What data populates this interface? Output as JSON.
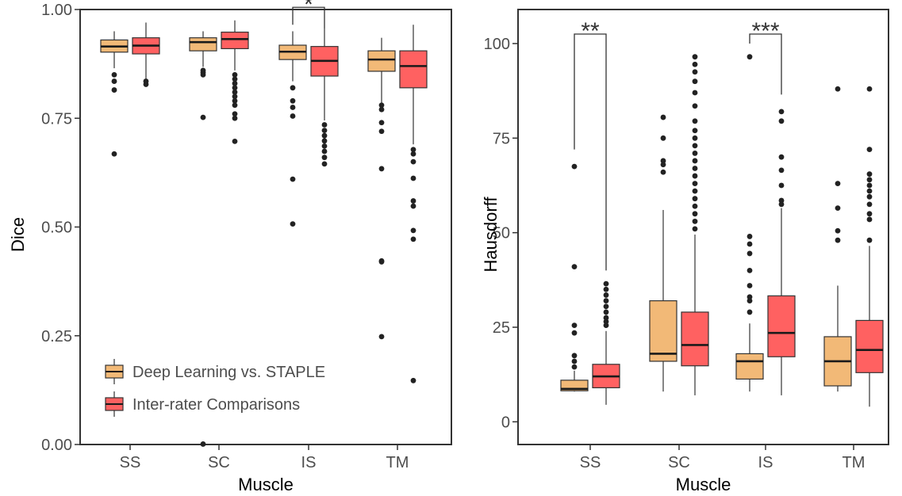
{
  "colors": {
    "dl": "#F2B977",
    "ir": "#FF6161",
    "outline": "#333333"
  },
  "legend": [
    {
      "label": "Deep Learning vs. STAPLE",
      "color": "#F2B977"
    },
    {
      "label": "Inter-rater Comparisons",
      "color": "#FF6161"
    }
  ],
  "chart_data": [
    {
      "type": "box",
      "xlabel": "Muscle",
      "ylabel": "Dice",
      "categories": [
        "SS",
        "SC",
        "IS",
        "TM"
      ],
      "ylim": [
        0,
        1
      ],
      "yticks": [
        0.0,
        0.25,
        0.5,
        0.75,
        1.0
      ],
      "ytick_labels": [
        "0.00",
        "0.25",
        "0.50",
        "0.75",
        "1.00"
      ],
      "series": [
        {
          "name": "Deep Learning vs. STAPLE",
          "boxes": [
            {
              "q1": 0.902,
              "median": 0.915,
              "q3": 0.93,
              "low": 0.865,
              "high": 0.95,
              "outliers": [
                0.85,
                0.835,
                0.815,
                0.668
              ]
            },
            {
              "q1": 0.905,
              "median": 0.925,
              "q3": 0.935,
              "low": 0.868,
              "high": 0.95,
              "outliers": [
                0.86,
                0.855,
                0.85,
                0.752,
                0.001
              ]
            },
            {
              "q1": 0.885,
              "median": 0.903,
              "q3": 0.918,
              "low": 0.835,
              "high": 0.95,
              "outliers": [
                0.82,
                0.79,
                0.775,
                0.755,
                0.61,
                0.507
              ]
            },
            {
              "q1": 0.858,
              "median": 0.885,
              "q3": 0.905,
              "low": 0.785,
              "high": 0.935,
              "outliers": [
                0.78,
                0.77,
                0.74,
                0.72,
                0.634,
                0.422,
                0.42,
                0.248
              ]
            }
          ]
        },
        {
          "name": "Inter-rater Comparisons",
          "boxes": [
            {
              "q1": 0.898,
              "median": 0.917,
              "q3": 0.935,
              "low": 0.84,
              "high": 0.97,
              "outliers": [
                0.835,
                0.828
              ]
            },
            {
              "q1": 0.91,
              "median": 0.932,
              "q3": 0.948,
              "low": 0.86,
              "high": 0.975,
              "outliers": [
                0.85,
                0.84,
                0.83,
                0.82,
                0.81,
                0.8,
                0.79,
                0.78,
                0.76,
                0.75,
                0.697
              ]
            },
            {
              "q1": 0.847,
              "median": 0.882,
              "q3": 0.915,
              "low": 0.745,
              "high": 0.955,
              "outliers": [
                0.735,
                0.722,
                0.71,
                0.698,
                0.686,
                0.674,
                0.66,
                0.645
              ]
            },
            {
              "q1": 0.82,
              "median": 0.87,
              "q3": 0.905,
              "low": 0.69,
              "high": 0.965,
              "outliers": [
                0.678,
                0.668,
                0.65,
                0.612,
                0.56,
                0.548,
                0.492,
                0.472,
                0.147
              ]
            }
          ]
        }
      ],
      "significance": [
        {
          "category": "IS",
          "label": "*",
          "top": 1.005,
          "left_end": 0.965,
          "right_end": 0.955
        }
      ],
      "legend_placement": "bottom-left"
    },
    {
      "type": "box",
      "xlabel": "Muscle",
      "ylabel": "Hausdorff",
      "categories": [
        "SS",
        "SC",
        "IS",
        "TM"
      ],
      "ylim": [
        -6,
        109
      ],
      "yticks": [
        0,
        25,
        50,
        75,
        100
      ],
      "ytick_labels": [
        "0",
        "25",
        "50",
        "75",
        "100"
      ],
      "series": [
        {
          "name": "Deep Learning vs. STAPLE",
          "boxes": [
            {
              "q1": 8.2,
              "median": 8.7,
              "q3": 11.0,
              "low": 8.0,
              "high": 13.5,
              "outliers": [
                14.5,
                16.0,
                17.5,
                23.5,
                25.5,
                41.0,
                67.5
              ]
            },
            {
              "q1": 16.0,
              "median": 18.0,
              "q3": 32.0,
              "low": 8.0,
              "high": 56.0,
              "outliers": [
                66.0,
                68.0,
                69.0,
                75.0,
                80.5
              ]
            },
            {
              "q1": 11.3,
              "median": 16.0,
              "q3": 18.0,
              "low": 8.0,
              "high": 26.0,
              "outliers": [
                29.0,
                32.0,
                33.0,
                36.0,
                40.0,
                44.5,
                47.0,
                49.0,
                96.5
              ]
            },
            {
              "q1": 9.5,
              "median": 16.0,
              "q3": 22.5,
              "low": 8.0,
              "high": 36.0,
              "outliers": [
                48.0,
                50.5,
                56.5,
                63.0,
                88.0
              ]
            }
          ]
        },
        {
          "name": "Inter-rater Comparisons",
          "boxes": [
            {
              "q1": 9.0,
              "median": 12.0,
              "q3": 15.2,
              "low": 4.5,
              "high": 24.0,
              "outliers": [
                25.5,
                26.5,
                27.5,
                29.0,
                30.5,
                32.0,
                33.5,
                35.0,
                36.5
              ]
            },
            {
              "q1": 14.8,
              "median": 20.3,
              "q3": 29.0,
              "low": 7.0,
              "high": 49.5,
              "outliers": [
                51.0,
                53.0,
                55.0,
                57.0,
                59.0,
                61.0,
                63.0,
                65.0,
                67.0,
                69.0,
                71.0,
                73.0,
                75.0,
                77.0,
                79.5,
                83.5,
                87.0,
                90.0,
                92.5,
                94.5,
                96.5
              ]
            },
            {
              "q1": 17.2,
              "median": 23.5,
              "q3": 33.3,
              "low": 7.0,
              "high": 56.5,
              "outliers": [
                57.5,
                58.5,
                62.5,
                66.5,
                70.0,
                79.5,
                82.0
              ]
            },
            {
              "q1": 13.0,
              "median": 19.0,
              "q3": 26.8,
              "low": 4.0,
              "high": 46.5,
              "outliers": [
                48.0,
                53.5,
                55.0,
                57.5,
                59.5,
                61.0,
                62.5,
                64.0,
                65.5,
                72.0,
                88.0
              ]
            }
          ]
        }
      ],
      "significance": [
        {
          "category": "SS",
          "label": "**",
          "top": 102.5,
          "left_end": 72.0,
          "right_end": 40.0
        },
        {
          "category": "IS",
          "label": "***",
          "top": 102.5,
          "left_end": 100.0,
          "right_end": 86.5
        }
      ],
      "legend_placement": "none"
    }
  ]
}
